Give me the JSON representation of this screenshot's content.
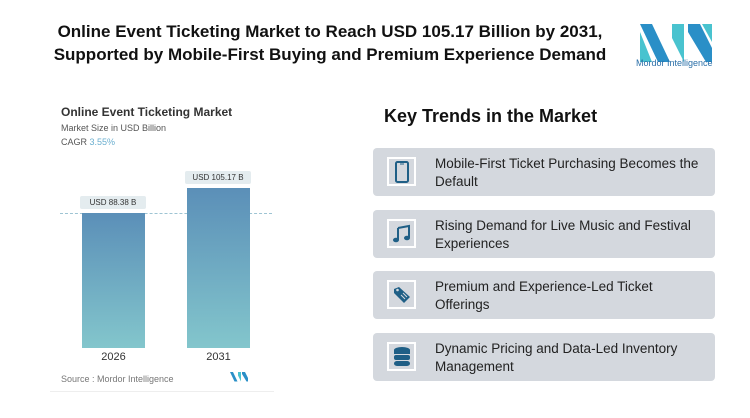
{
  "header": {
    "title": "Online Event Ticketing Market to Reach USD 105.17 Billion by 2031, Supported by Mobile-First Buying and Premium Experience Demand",
    "logo_text": "Mordor Intelligence"
  },
  "chart_data": {
    "type": "bar",
    "title": "Online Event Ticketing Market",
    "subtitle": "Market Size in USD Billion",
    "cagr_label": "CAGR",
    "cagr_value": "3.55%",
    "categories": [
      "2026",
      "2031"
    ],
    "values": [
      88.38,
      105.17
    ],
    "data_labels": [
      "USD 88.38 B",
      "USD 105.17 B"
    ],
    "source": "Source :  Mordor Intelligence",
    "colors": {
      "bar_top": "#5b8fb8",
      "bar_bottom": "#83c6cc"
    }
  },
  "trends": {
    "title": "Key Trends in the Market",
    "items": [
      {
        "icon": "smartphone-icon",
        "label": "Mobile-First Ticket Purchasing Becomes the Default"
      },
      {
        "icon": "music-note-icon",
        "label": "Rising Demand for Live Music and Festival Experiences"
      },
      {
        "icon": "price-tag-icon",
        "label": "Premium and Experience-Led Ticket Offerings"
      },
      {
        "icon": "database-icon",
        "label": "Dynamic Pricing and Data-Led Inventory Management"
      }
    ]
  }
}
